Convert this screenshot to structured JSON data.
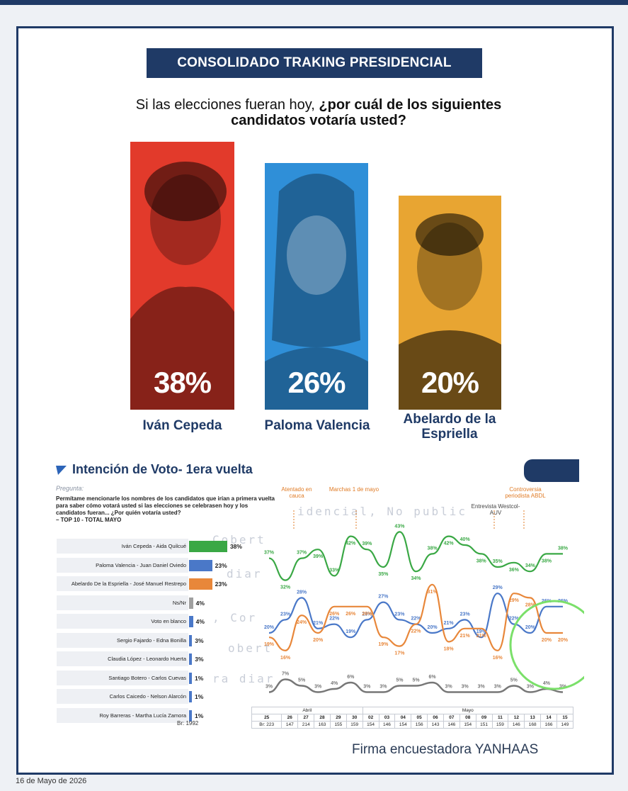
{
  "header": {
    "title": "CONSOLIDADO TRAKING PRESIDENCIAL",
    "question_plain": "Si las elecciones fueran hoy, ",
    "question_bold": "¿por cuál de los siguientes candidatos votaría usted?"
  },
  "candidates": [
    {
      "name": "Iván Cepeda",
      "pct": "38%",
      "color": "#e23a2b"
    },
    {
      "name": "Paloma Valencia",
      "pct": "26%",
      "color": "#2f8fd8"
    },
    {
      "name": "Abelardo de la Espriella",
      "pct": "20%",
      "color": "#e8a532"
    }
  ],
  "section": {
    "title": "Intención de Voto- 1era vuelta",
    "pregunta_label": "Pregunta:",
    "pregunta_text": "Permítame mencionarle los nombres de los candidatos que irían a primera vuelta para saber cómo votará usted si las elecciones se celebrasen hoy y los candidatos fueran... ¿Por quién votaría usted?",
    "pregunta_sub": "– TOP 10 - TOTAL MAYO",
    "base": "Br: 1992"
  },
  "annotations": [
    {
      "text": "Atentado en cauca"
    },
    {
      "text": "Marchas 1 de mayo"
    },
    {
      "text": "Entrevista Westcol-AUV"
    },
    {
      "text": "Controversia periodista ABDL"
    }
  ],
  "watermark": [
    "idencial, No public",
    "Cobert",
    "diar",
    ", Cor",
    "obert",
    "ra diar"
  ],
  "chart_data": [
    {
      "type": "bar",
      "orientation": "horizontal",
      "categories": [
        "Iván Cepeda - Aida Quilcué",
        "Paloma Valencia - Juan Daniel Oviedo",
        "Abelardo De la Espriella - José Manuel Restrepo",
        "Ns/Nr",
        "Voto en blanco",
        "Sergio Fajardo - Edna Bonilla",
        "Claudia López - Leonardo Huerta",
        "Santiago Botero - Carlos Cuevas",
        "Carlos Caicedo - Nelson Alarcón",
        "Roy Barreras - Martha Lucía Zamora"
      ],
      "values": [
        38,
        23,
        23,
        4,
        4,
        3,
        3,
        1,
        1,
        1
      ],
      "labels": [
        "38%",
        "23%",
        "23%",
        "4%",
        "4%",
        "3%",
        "3%",
        "1%",
        "1%",
        "1%"
      ],
      "colors": [
        "#3aa845",
        "#4a78c8",
        "#e8873a",
        "#a0a0a0",
        "#4a78c8",
        "#4a78c8",
        "#4a78c8",
        "#4a78c8",
        "#4a78c8",
        "#4a78c8"
      ]
    },
    {
      "type": "line",
      "x": [
        "25",
        "26",
        "27",
        "28",
        "29",
        "30",
        "02",
        "03",
        "04",
        "05",
        "06",
        "07",
        "08",
        "09",
        "11",
        "12",
        "13",
        "14",
        "15"
      ],
      "month_labels": [
        "Abril",
        "Mayo"
      ],
      "base_row": [
        "Br: 223",
        "147",
        "214",
        "163",
        "155",
        "159",
        "154",
        "146",
        "154",
        "156",
        "143",
        "146",
        "154",
        "151",
        "159",
        "146",
        "168",
        "166",
        "149"
      ],
      "ylim": [
        0,
        45
      ],
      "series": [
        {
          "color": "#3aa845",
          "values": [
            37,
            32,
            37,
            39,
            33,
            42,
            39,
            35,
            43,
            34,
            38,
            42,
            40,
            38,
            35,
            36,
            34,
            38,
            38
          ],
          "labels": [
            "37%",
            "32%",
            "37%",
            "39%",
            "33%",
            "42%",
            "39%",
            "35%",
            "43%",
            "34%",
            "38%",
            "42%",
            "40%",
            "38%",
            "35%",
            "36%",
            "34%",
            "38%",
            "38%"
          ]
        },
        {
          "color": "#4a78c8",
          "values": [
            20,
            23,
            28,
            21,
            22,
            19,
            23,
            27,
            23,
            22,
            20,
            21,
            23,
            19,
            29,
            22,
            20,
            26,
            26
          ],
          "labels": [
            "20%",
            "23%",
            "28%",
            "21%",
            "22%",
            "19%",
            "23%",
            "27%",
            "23%",
            "22%",
            "20%",
            "21%",
            "23%",
            "19%",
            "29%",
            "22%",
            "20%",
            "26%",
            "26%"
          ]
        },
        {
          "color": "#e8873a",
          "values": [
            19,
            16,
            24,
            20,
            26,
            26,
            26,
            19,
            17,
            22,
            31,
            18,
            21,
            21,
            16,
            29,
            28,
            20,
            20
          ],
          "labels": [
            "19%",
            "16%",
            "24%",
            "20%",
            "26%",
            "26%",
            "26%",
            "19%",
            "17%",
            "22%",
            "31%",
            "18%",
            "21%",
            "21%",
            "16%",
            "29%",
            "28%",
            "20%",
            "20%"
          ]
        },
        {
          "color": "#777777",
          "values": [
            3,
            7,
            5,
            3,
            4,
            6,
            3,
            3,
            5,
            5,
            6,
            3,
            3,
            3,
            3,
            5,
            3,
            4,
            3
          ],
          "labels": [
            "3%",
            "7%",
            "5%",
            "3%",
            "4%",
            "6%",
            "3%",
            "3%",
            "5%",
            "5%",
            "6%",
            "3%",
            "3%",
            "3%",
            "3%",
            "5%",
            "3%",
            "4%",
            "3%"
          ]
        }
      ]
    }
  ],
  "footer": {
    "firm": "Firma encuestadora YANHAAS",
    "date": "16 de Mayo de 2026"
  }
}
